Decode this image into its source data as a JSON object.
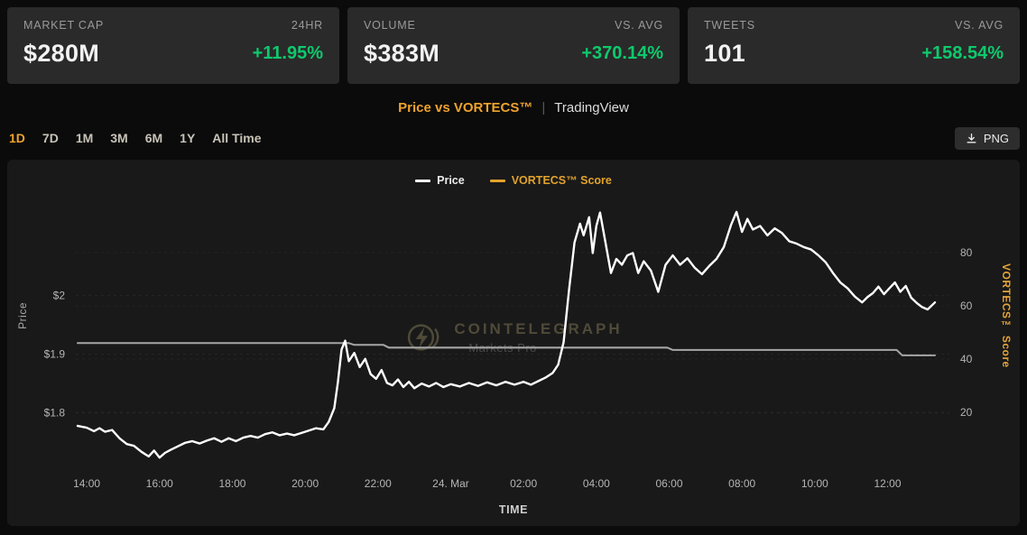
{
  "stats": [
    {
      "label": "MARKET CAP",
      "sub": "24HR",
      "value": "$280M",
      "change": "+11.95%"
    },
    {
      "label": "VOLUME",
      "sub": "VS. AVG",
      "value": "$383M",
      "change": "+370.14%"
    },
    {
      "label": "TWEETS",
      "sub": "VS. AVG",
      "value": "101",
      "change": "+158.54%"
    }
  ],
  "header": {
    "title": "Price vs VORTECS™",
    "divider": "|",
    "subtitle": "TradingView"
  },
  "ranges": {
    "items": [
      "1D",
      "7D",
      "1M",
      "3M",
      "6M",
      "1Y",
      "All Time"
    ],
    "active_index": 0
  },
  "toolbar": {
    "png_label": "PNG"
  },
  "watermark": {
    "line1": "COINTELEGRAPH",
    "line2": "Markets Pro"
  },
  "colors": {
    "accent_orange": "#efa32e",
    "positive_green": "#0fc96d",
    "price_line": "#ffffff",
    "score_line": "#a6a6a6",
    "card_bg": "#2a2a2a",
    "panel_bg": "#191919"
  },
  "chart_data": {
    "type": "line",
    "title": "Price vs VORTECS™",
    "xlabel": "TIME",
    "x_unit": "hours since 14:00 (23 Mar)",
    "x_domain": [
      -0.3,
      23.4
    ],
    "x_ticks": [
      {
        "t": 0,
        "label": "14:00"
      },
      {
        "t": 2,
        "label": "16:00"
      },
      {
        "t": 4,
        "label": "18:00"
      },
      {
        "t": 6,
        "label": "20:00"
      },
      {
        "t": 8,
        "label": "22:00"
      },
      {
        "t": 10,
        "label": "24. Mar"
      },
      {
        "t": 12,
        "label": "02:00"
      },
      {
        "t": 14,
        "label": "04:00"
      },
      {
        "t": 16,
        "label": "06:00"
      },
      {
        "t": 18,
        "label": "08:00"
      },
      {
        "t": 20,
        "label": "10:00"
      },
      {
        "t": 22,
        "label": "12:00"
      }
    ],
    "left_axis": {
      "label": "Price",
      "domain": [
        1.7,
        2.2
      ],
      "ticks": [
        {
          "v": 1.8,
          "label": "$1.8"
        },
        {
          "v": 1.9,
          "label": "$1.9"
        },
        {
          "v": 2.0,
          "label": "$2"
        }
      ]
    },
    "right_axis": {
      "label": "VORTECS™ Score",
      "domain": [
        0,
        100
      ],
      "ticks": [
        {
          "v": 20,
          "label": "20"
        },
        {
          "v": 40,
          "label": "40"
        },
        {
          "v": 60,
          "label": "60"
        },
        {
          "v": 80,
          "label": "80"
        }
      ]
    },
    "legend_position": "top-center",
    "grid": "faint-dashed-horizontal",
    "series": [
      {
        "name": "Price",
        "axis": "left",
        "color": "#ffffff",
        "legend_color": "#ffffff",
        "legend_text_color": "#ebebeb",
        "width": 2.4,
        "points": [
          [
            -0.25,
            1.778
          ],
          [
            0,
            1.775
          ],
          [
            0.2,
            1.769
          ],
          [
            0.35,
            1.774
          ],
          [
            0.5,
            1.768
          ],
          [
            0.7,
            1.771
          ],
          [
            0.9,
            1.757
          ],
          [
            1.1,
            1.747
          ],
          [
            1.3,
            1.744
          ],
          [
            1.5,
            1.734
          ],
          [
            1.7,
            1.726
          ],
          [
            1.85,
            1.736
          ],
          [
            2.0,
            1.724
          ],
          [
            2.15,
            1.732
          ],
          [
            2.3,
            1.737
          ],
          [
            2.5,
            1.743
          ],
          [
            2.7,
            1.749
          ],
          [
            2.9,
            1.752
          ],
          [
            3.1,
            1.748
          ],
          [
            3.3,
            1.753
          ],
          [
            3.5,
            1.757
          ],
          [
            3.7,
            1.751
          ],
          [
            3.9,
            1.757
          ],
          [
            4.1,
            1.752
          ],
          [
            4.3,
            1.758
          ],
          [
            4.5,
            1.761
          ],
          [
            4.7,
            1.758
          ],
          [
            4.9,
            1.764
          ],
          [
            5.1,
            1.767
          ],
          [
            5.3,
            1.762
          ],
          [
            5.5,
            1.765
          ],
          [
            5.7,
            1.762
          ],
          [
            5.9,
            1.766
          ],
          [
            6.1,
            1.77
          ],
          [
            6.3,
            1.774
          ],
          [
            6.5,
            1.772
          ],
          [
            6.65,
            1.785
          ],
          [
            6.8,
            1.808
          ],
          [
            6.9,
            1.852
          ],
          [
            7.0,
            1.908
          ],
          [
            7.1,
            1.923
          ],
          [
            7.2,
            1.888
          ],
          [
            7.35,
            1.902
          ],
          [
            7.5,
            1.878
          ],
          [
            7.65,
            1.892
          ],
          [
            7.8,
            1.866
          ],
          [
            7.95,
            1.858
          ],
          [
            8.1,
            1.873
          ],
          [
            8.25,
            1.851
          ],
          [
            8.4,
            1.847
          ],
          [
            8.55,
            1.857
          ],
          [
            8.7,
            1.844
          ],
          [
            8.85,
            1.853
          ],
          [
            9.0,
            1.842
          ],
          [
            9.2,
            1.85
          ],
          [
            9.4,
            1.845
          ],
          [
            9.6,
            1.851
          ],
          [
            9.8,
            1.844
          ],
          [
            10.0,
            1.849
          ],
          [
            10.25,
            1.845
          ],
          [
            10.5,
            1.851
          ],
          [
            10.75,
            1.846
          ],
          [
            11.0,
            1.852
          ],
          [
            11.25,
            1.847
          ],
          [
            11.5,
            1.853
          ],
          [
            11.75,
            1.848
          ],
          [
            12.0,
            1.853
          ],
          [
            12.2,
            1.848
          ],
          [
            12.4,
            1.854
          ],
          [
            12.6,
            1.86
          ],
          [
            12.8,
            1.868
          ],
          [
            12.95,
            1.882
          ],
          [
            13.1,
            1.92
          ],
          [
            13.25,
            2.01
          ],
          [
            13.4,
            2.09
          ],
          [
            13.55,
            2.122
          ],
          [
            13.65,
            2.102
          ],
          [
            13.8,
            2.133
          ],
          [
            13.9,
            2.072
          ],
          [
            14.0,
            2.118
          ],
          [
            14.1,
            2.141
          ],
          [
            14.25,
            2.09
          ],
          [
            14.4,
            2.038
          ],
          [
            14.55,
            2.062
          ],
          [
            14.7,
            2.052
          ],
          [
            14.85,
            2.068
          ],
          [
            15.0,
            2.072
          ],
          [
            15.15,
            2.038
          ],
          [
            15.3,
            2.058
          ],
          [
            15.5,
            2.042
          ],
          [
            15.7,
            2.006
          ],
          [
            15.9,
            2.052
          ],
          [
            16.1,
            2.068
          ],
          [
            16.3,
            2.052
          ],
          [
            16.5,
            2.063
          ],
          [
            16.7,
            2.047
          ],
          [
            16.9,
            2.036
          ],
          [
            17.1,
            2.05
          ],
          [
            17.3,
            2.062
          ],
          [
            17.5,
            2.082
          ],
          [
            17.7,
            2.12
          ],
          [
            17.85,
            2.142
          ],
          [
            18.0,
            2.108
          ],
          [
            18.15,
            2.13
          ],
          [
            18.3,
            2.112
          ],
          [
            18.5,
            2.118
          ],
          [
            18.7,
            2.102
          ],
          [
            18.9,
            2.114
          ],
          [
            19.1,
            2.106
          ],
          [
            19.3,
            2.092
          ],
          [
            19.5,
            2.088
          ],
          [
            19.7,
            2.082
          ],
          [
            19.9,
            2.078
          ],
          [
            20.1,
            2.068
          ],
          [
            20.3,
            2.056
          ],
          [
            20.5,
            2.038
          ],
          [
            20.7,
            2.022
          ],
          [
            20.9,
            2.012
          ],
          [
            21.1,
            1.998
          ],
          [
            21.3,
            1.988
          ],
          [
            21.45,
            1.997
          ],
          [
            21.6,
            2.004
          ],
          [
            21.75,
            2.015
          ],
          [
            21.9,
            2.002
          ],
          [
            22.05,
            2.012
          ],
          [
            22.2,
            2.022
          ],
          [
            22.35,
            2.006
          ],
          [
            22.5,
            2.016
          ],
          [
            22.65,
            1.996
          ],
          [
            22.8,
            1.987
          ],
          [
            22.95,
            1.98
          ],
          [
            23.1,
            1.976
          ],
          [
            23.3,
            1.988
          ]
        ]
      },
      {
        "name": "VORTECS™ Score",
        "axis": "right",
        "color": "#a6a6a6",
        "legend_color": "#e3a32c",
        "legend_text_color": "#e3a32c",
        "width": 2,
        "points": [
          [
            -0.25,
            46
          ],
          [
            7.2,
            46
          ],
          [
            7.35,
            45.3
          ],
          [
            8.15,
            45.3
          ],
          [
            8.3,
            44.3
          ],
          [
            15.95,
            44.3
          ],
          [
            16.1,
            43.4
          ],
          [
            22.25,
            43.4
          ],
          [
            22.4,
            41.4
          ],
          [
            23.3,
            41.4
          ]
        ]
      }
    ]
  }
}
